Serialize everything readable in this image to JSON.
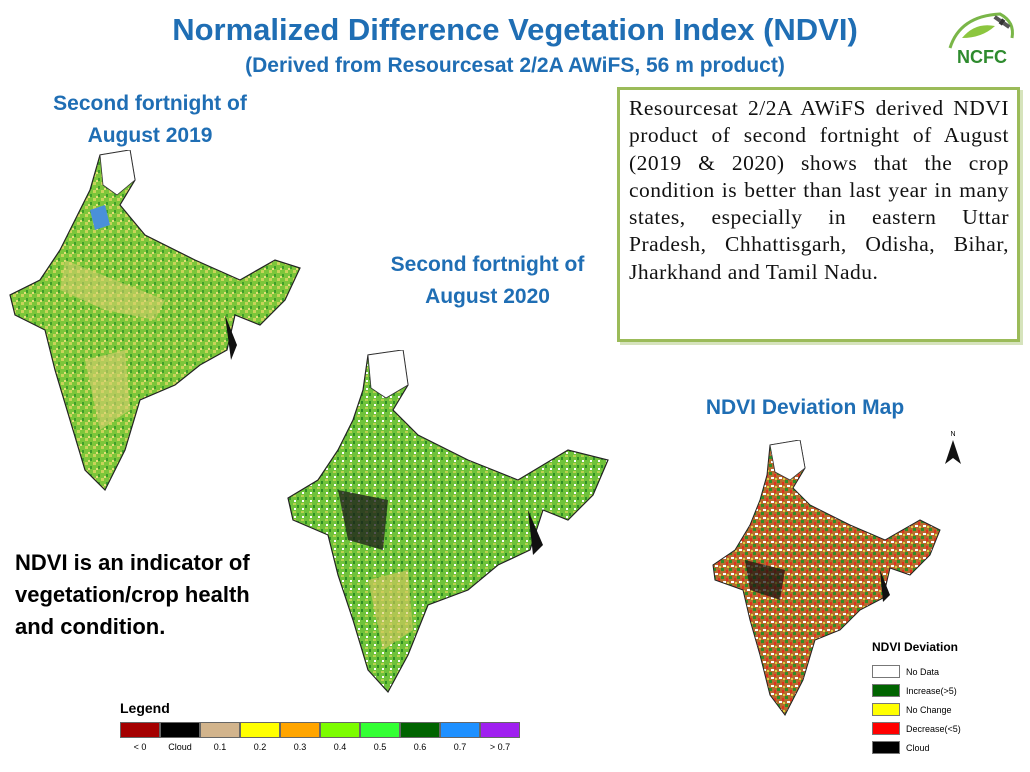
{
  "header": {
    "title": "Normalized Difference Vegetation Index (NDVI)",
    "subtitle": "(Derived from Resourcesat 2/2A AWiFS, 56 m product)"
  },
  "logo": {
    "text": "NCFC",
    "icon": "ncfc-satellite-leaf-logo"
  },
  "maps": {
    "map_2019_label": "Second fortnight of August 2019",
    "map_2020_label": "Second fortnight of August 2020",
    "deviation_label": "NDVI Deviation Map"
  },
  "description": "Resourcesat 2/2A AWiFS derived NDVI product of second fortnight of August (2019 & 2020) shows that the crop condition is better than last year in many states, especially in eastern Uttar Pradesh, Chhattisgarh, Odisha, Bihar, Jharkhand and Tamil Nadu.",
  "indicator_note": "NDVI is an indicator of vegetation/crop health and condition.",
  "legend": {
    "title": "Legend",
    "items": [
      {
        "label": "< 0",
        "color": "#a50000"
      },
      {
        "label": "Cloud",
        "color": "#000000"
      },
      {
        "label": "0.1",
        "color": "#d2b48c"
      },
      {
        "label": "0.2",
        "color": "#ffff00"
      },
      {
        "label": "0.3",
        "color": "#ffa500"
      },
      {
        "label": "0.4",
        "color": "#7cfc00"
      },
      {
        "label": "0.5",
        "color": "#33ff33"
      },
      {
        "label": "0.6",
        "color": "#006400"
      },
      {
        "label": "0.7",
        "color": "#1e90ff"
      },
      {
        "label": "> 0.7",
        "color": "#a020f0"
      }
    ]
  },
  "deviation_legend": {
    "title": "NDVI Deviation",
    "items": [
      {
        "label": "No Data",
        "color": "#ffffff"
      },
      {
        "label": "Increase(>5)",
        "color": "#006400"
      },
      {
        "label": "No Change",
        "color": "#ffff00"
      },
      {
        "label": "Decrease(<5)",
        "color": "#ff0000"
      },
      {
        "label": "Cloud",
        "color": "#000000"
      }
    ]
  },
  "north_arrow": {
    "label": "N"
  }
}
